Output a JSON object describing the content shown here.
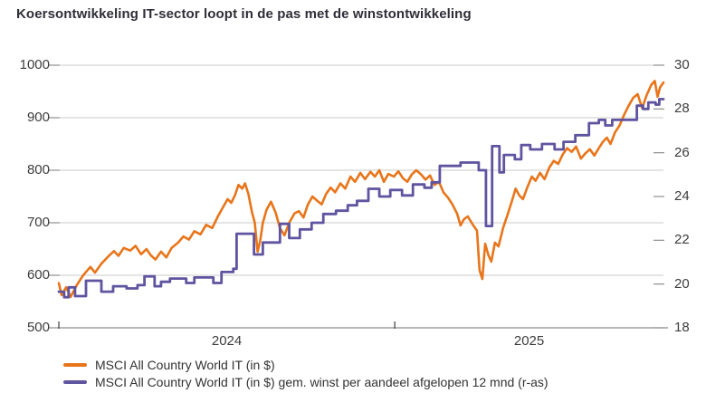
{
  "title": "Koersontwikkeling IT-sector loopt in de pas met de winstontwikkeling",
  "colors": {
    "orange": "#E8751A",
    "purple": "#5F549F",
    "grid": "#CBCBCB",
    "axis_line": "#A0A0A0",
    "tick": "#8F8F8F",
    "x_tick": "#4A4A4A",
    "axis_text": "#3D3D3D",
    "title_text": "#2E2E38",
    "legend_text": "#333333",
    "background": "#FFFFFF"
  },
  "x_labels": [
    "2024",
    "2025"
  ],
  "legend": {
    "items": [
      {
        "label": "MSCI All Country World IT (in $)",
        "color_key": "orange"
      },
      {
        "label": "MSCI All Country World IT (in $) gem. winst per aandeel afgelopen 12 mnd (r-as)",
        "color_key": "purple"
      }
    ]
  },
  "chart_data": {
    "type": "line",
    "title": "Koersontwikkeling IT-sector loopt in de pas met de winstontwikkeling",
    "grid": "horizontal",
    "legend_position": "bottom-left",
    "x_axis": {
      "unit": "months since Jan 2024",
      "min": 0,
      "max": 21.6,
      "tick_positions": [
        0,
        12
      ],
      "segment_labels": [
        "2024",
        "2025"
      ]
    },
    "left_axis": {
      "min": 500,
      "max": 1000,
      "ticks": [
        1000,
        900,
        800,
        700,
        600,
        500
      ]
    },
    "right_axis": {
      "min": 18,
      "max": 30,
      "ticks": [
        30,
        28,
        26,
        24,
        22,
        20,
        18
      ]
    },
    "series": [
      {
        "name": "MSCI All Country World IT (in $)",
        "axis": "left",
        "color_key": "orange",
        "step": false,
        "points": [
          [
            0,
            585
          ],
          [
            0.1,
            562
          ],
          [
            0.26,
            577
          ],
          [
            0.42,
            559
          ],
          [
            0.65,
            582
          ],
          [
            0.87,
            600
          ],
          [
            1.13,
            616
          ],
          [
            1.29,
            605
          ],
          [
            1.52,
            622
          ],
          [
            1.77,
            636
          ],
          [
            1.97,
            646
          ],
          [
            2.13,
            637
          ],
          [
            2.32,
            652
          ],
          [
            2.55,
            647
          ],
          [
            2.74,
            656
          ],
          [
            2.94,
            640
          ],
          [
            3.13,
            650
          ],
          [
            3.29,
            638
          ],
          [
            3.45,
            630
          ],
          [
            3.65,
            645
          ],
          [
            3.84,
            634
          ],
          [
            4.03,
            652
          ],
          [
            4.26,
            662
          ],
          [
            4.45,
            674
          ],
          [
            4.65,
            668
          ],
          [
            4.84,
            684
          ],
          [
            5.06,
            678
          ],
          [
            5.26,
            696
          ],
          [
            5.48,
            690
          ],
          [
            5.68,
            712
          ],
          [
            5.87,
            730
          ],
          [
            6.03,
            745
          ],
          [
            6.16,
            738
          ],
          [
            6.29,
            752
          ],
          [
            6.42,
            772
          ],
          [
            6.55,
            765
          ],
          [
            6.65,
            775
          ],
          [
            6.77,
            755
          ],
          [
            6.9,
            720
          ],
          [
            7.0,
            700
          ],
          [
            7.1,
            645
          ],
          [
            7.19,
            665
          ],
          [
            7.29,
            700
          ],
          [
            7.42,
            725
          ],
          [
            7.58,
            740
          ],
          [
            7.74,
            720
          ],
          [
            7.9,
            690
          ],
          [
            8.06,
            676
          ],
          [
            8.23,
            700
          ],
          [
            8.42,
            718
          ],
          [
            8.58,
            722
          ],
          [
            8.74,
            710
          ],
          [
            8.9,
            735
          ],
          [
            9.06,
            750
          ],
          [
            9.23,
            742
          ],
          [
            9.39,
            735
          ],
          [
            9.55,
            755
          ],
          [
            9.71,
            767
          ],
          [
            9.87,
            758
          ],
          [
            10.06,
            775
          ],
          [
            10.23,
            765
          ],
          [
            10.42,
            788
          ],
          [
            10.58,
            778
          ],
          [
            10.77,
            795
          ],
          [
            10.94,
            783
          ],
          [
            11.13,
            797
          ],
          [
            11.29,
            788
          ],
          [
            11.45,
            800
          ],
          [
            11.61,
            778
          ],
          [
            11.77,
            793
          ],
          [
            11.97,
            788
          ],
          [
            12.13,
            798
          ],
          [
            12.29,
            785
          ],
          [
            12.45,
            778
          ],
          [
            12.61,
            792
          ],
          [
            12.77,
            800
          ],
          [
            12.94,
            792
          ],
          [
            13.1,
            782
          ],
          [
            13.26,
            790
          ],
          [
            13.42,
            772
          ],
          [
            13.58,
            778
          ],
          [
            13.74,
            758
          ],
          [
            13.9,
            748
          ],
          [
            14.06,
            735
          ],
          [
            14.23,
            717
          ],
          [
            14.35,
            695
          ],
          [
            14.48,
            707
          ],
          [
            14.61,
            712
          ],
          [
            14.77,
            698
          ],
          [
            14.94,
            685
          ],
          [
            15.03,
            610
          ],
          [
            15.13,
            593
          ],
          [
            15.23,
            660
          ],
          [
            15.35,
            638
          ],
          [
            15.45,
            626
          ],
          [
            15.58,
            662
          ],
          [
            15.71,
            655
          ],
          [
            15.87,
            690
          ],
          [
            16.03,
            715
          ],
          [
            16.19,
            742
          ],
          [
            16.32,
            765
          ],
          [
            16.45,
            752
          ],
          [
            16.58,
            745
          ],
          [
            16.74,
            768
          ],
          [
            16.9,
            788
          ],
          [
            17.03,
            780
          ],
          [
            17.19,
            795
          ],
          [
            17.35,
            783
          ],
          [
            17.52,
            805
          ],
          [
            17.68,
            818
          ],
          [
            17.84,
            812
          ],
          [
            18.0,
            830
          ],
          [
            18.16,
            842
          ],
          [
            18.32,
            835
          ],
          [
            18.48,
            845
          ],
          [
            18.65,
            822
          ],
          [
            18.81,
            832
          ],
          [
            18.97,
            840
          ],
          [
            19.13,
            828
          ],
          [
            19.29,
            842
          ],
          [
            19.45,
            855
          ],
          [
            19.58,
            862
          ],
          [
            19.71,
            850
          ],
          [
            19.87,
            872
          ],
          [
            20.03,
            885
          ],
          [
            20.19,
            905
          ],
          [
            20.35,
            922
          ],
          [
            20.52,
            938
          ],
          [
            20.68,
            945
          ],
          [
            20.84,
            918
          ],
          [
            21.0,
            943
          ],
          [
            21.16,
            962
          ],
          [
            21.29,
            970
          ],
          [
            21.39,
            940
          ],
          [
            21.48,
            958
          ],
          [
            21.6,
            967
          ]
        ]
      },
      {
        "name": "MSCI All Country World IT (in $) gem. winst per aandeel afgelopen 12 mnd (r-as)",
        "axis": "right",
        "color_key": "purple",
        "step": true,
        "points": [
          [
            0,
            19.65
          ],
          [
            0.19,
            19.4
          ],
          [
            0.35,
            19.85
          ],
          [
            0.58,
            19.45
          ],
          [
            0.97,
            20.15
          ],
          [
            1.52,
            19.65
          ],
          [
            1.94,
            19.9
          ],
          [
            2.42,
            19.8
          ],
          [
            2.81,
            19.95
          ],
          [
            3.06,
            20.35
          ],
          [
            3.42,
            19.9
          ],
          [
            3.65,
            20.1
          ],
          [
            3.97,
            20.25
          ],
          [
            4.55,
            20.05
          ],
          [
            4.84,
            20.3
          ],
          [
            5.52,
            20.05
          ],
          [
            5.81,
            20.55
          ],
          [
            6.23,
            20.7
          ],
          [
            6.35,
            22.3
          ],
          [
            6.97,
            21.35
          ],
          [
            7.29,
            21.9
          ],
          [
            7.9,
            22.75
          ],
          [
            8.23,
            22.1
          ],
          [
            8.61,
            22.5
          ],
          [
            9.03,
            22.8
          ],
          [
            9.45,
            23.2
          ],
          [
            9.9,
            23.35
          ],
          [
            10.32,
            23.6
          ],
          [
            10.65,
            23.8
          ],
          [
            11.06,
            24.35
          ],
          [
            11.45,
            24.0
          ],
          [
            11.84,
            24.3
          ],
          [
            12.26,
            24.05
          ],
          [
            12.65,
            24.55
          ],
          [
            13.06,
            24.4
          ],
          [
            13.32,
            24.65
          ],
          [
            13.61,
            25.4
          ],
          [
            14.35,
            25.55
          ],
          [
            15.0,
            25.2
          ],
          [
            15.26,
            22.65
          ],
          [
            15.48,
            26.3
          ],
          [
            15.74,
            25.1
          ],
          [
            15.9,
            25.9
          ],
          [
            16.29,
            25.7
          ],
          [
            16.52,
            26.35
          ],
          [
            16.84,
            26.15
          ],
          [
            17.26,
            26.4
          ],
          [
            17.71,
            26.15
          ],
          [
            18.03,
            26.5
          ],
          [
            18.45,
            26.8
          ],
          [
            18.94,
            27.35
          ],
          [
            19.29,
            27.5
          ],
          [
            19.52,
            27.25
          ],
          [
            19.77,
            27.5
          ],
          [
            20.65,
            28.15
          ],
          [
            20.87,
            28.0
          ],
          [
            21.06,
            28.3
          ],
          [
            21.32,
            28.2
          ],
          [
            21.45,
            28.45
          ],
          [
            21.6,
            28.45
          ]
        ]
      }
    ]
  }
}
